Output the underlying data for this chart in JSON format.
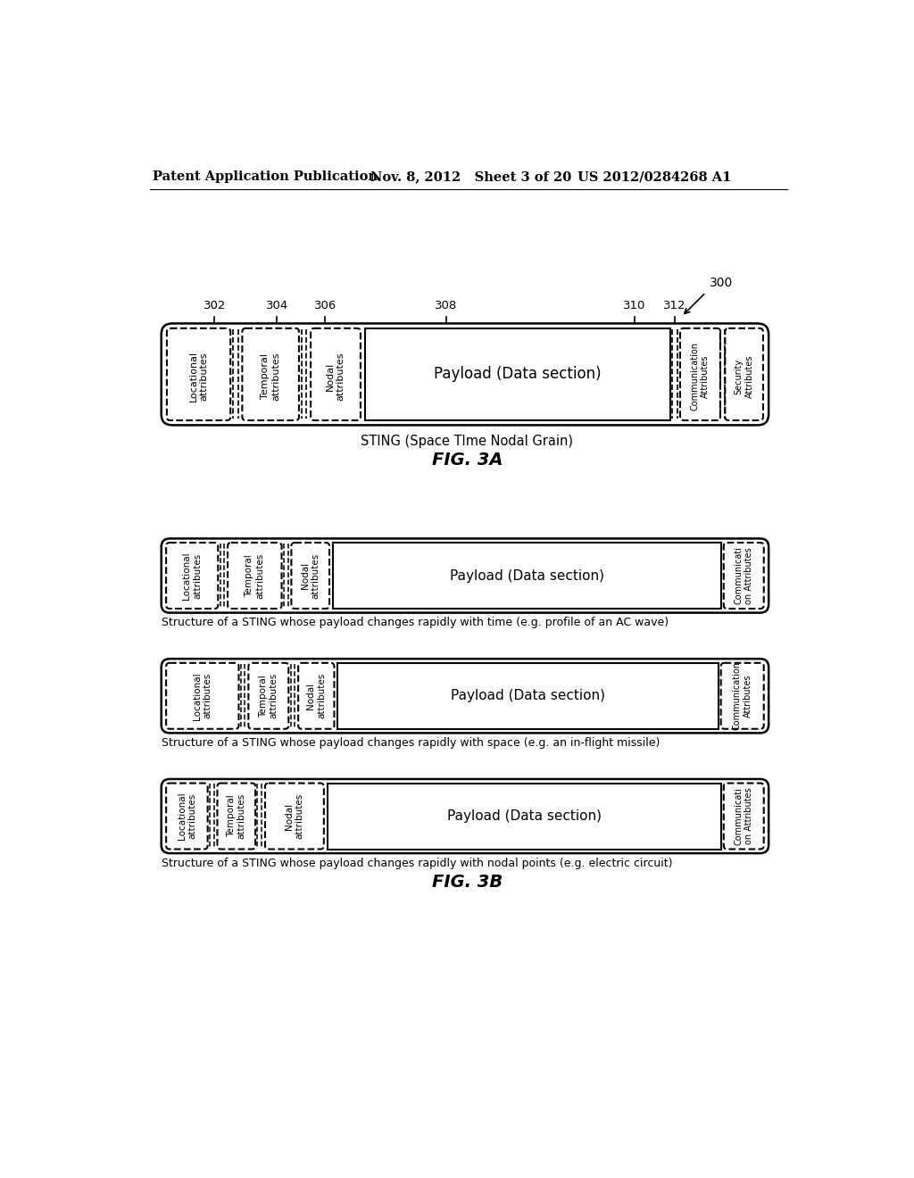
{
  "bg_color": "#ffffff",
  "header_left": "Patent Application Publication",
  "header_mid": "Nov. 8, 2012   Sheet 3 of 20",
  "header_right": "US 2012/0284268 A1",
  "fig3a_label": "FIG. 3A",
  "fig3b_label": "FIG. 3B",
  "sting_label": "STING (Space TIme Nodal Grain)",
  "ref300": "300",
  "ref302": "302",
  "ref304": "304",
  "ref306": "306",
  "ref308": "308",
  "ref310": "310",
  "ref312": "312",
  "payload_text": "Payload (Data section)",
  "loc_attr": "Locational\nattributes",
  "temp_attr": "Temporal\nattributes",
  "nodal_attr": "Nodal\nattributes",
  "comm_attr": "Communication\nAttributes",
  "sec_attr": "Security\nAttributes",
  "comm_attr_short": "Communicati\non Attributes",
  "caption1": "Structure of a STING whose payload changes rapidly with time (e.g. profile of an AC wave)",
  "caption2": "Structure of a STING whose payload changes rapidly with space (e.g. an in-flight missile)",
  "caption3": "Structure of a STING whose payload changes rapidly with nodal points (e.g. electric circuit)"
}
